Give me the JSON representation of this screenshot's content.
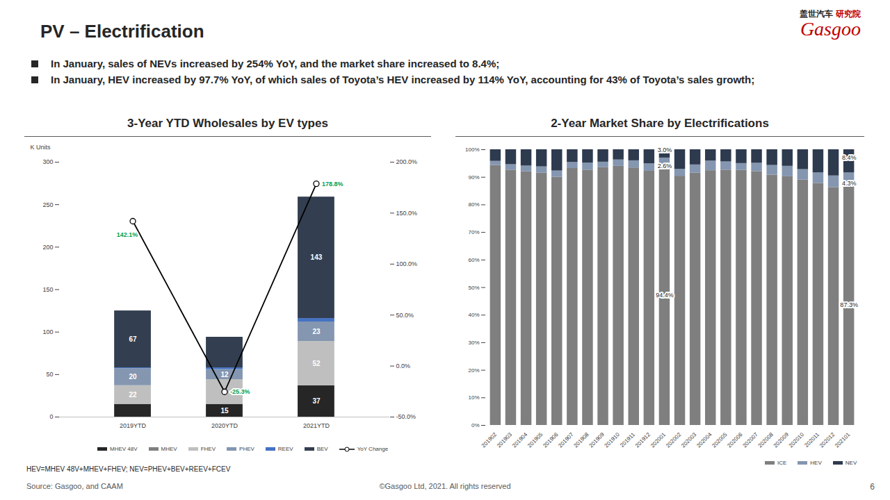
{
  "page": {
    "title": "PV – Electrification",
    "bullets": [
      "In January, sales of NEVs increased by 254% YoY, and the market share increased to 8.4%;",
      "In January, HEV increased by 97.7% YoY, of which sales of Toyota’s HEV increased by 114% YoY, accounting for 43% of Toyota’s sales growth;"
    ],
    "logo": {
      "cn": "盖世汽车",
      "cn_sub": "研究院",
      "en": "Gasgoo"
    },
    "note": "HEV=MHEV 48V+MHEV+FHEV; NEV=PHEV+BEV+REEV+FCEV",
    "source": "Source: Gasgoo, and CAAM",
    "copyright": "©Gasgoo Ltd, 2021. All rights reserved",
    "page_number": 6
  },
  "chart_data": [
    {
      "type": "bar",
      "title": "3-Year YTD Wholesales by EV types",
      "ylabel": "K Units",
      "categories": [
        "2019YTD",
        "2020YTD",
        "2021YTD"
      ],
      "stacked": true,
      "data_labels": true,
      "legend": "bottom",
      "ylim": [
        0,
        300
      ],
      "yticks": [
        0,
        50,
        100,
        150,
        200,
        250,
        300
      ],
      "y2lim": [
        -50,
        200
      ],
      "y2ticks": [
        {
          "value": -50,
          "label": "-50.0%"
        },
        {
          "value": 0,
          "label": "0.0%"
        },
        {
          "value": 50,
          "label": "50.0%"
        },
        {
          "value": 100,
          "label": "100.0%"
        },
        {
          "value": 150,
          "label": "150.0%"
        },
        {
          "value": 200,
          "label": "200.0%"
        }
      ],
      "series": [
        {
          "name": "MHEV 48V",
          "color": "#262626",
          "values": [
            15,
            15,
            37
          ],
          "value_labels": [
            null,
            "15",
            "37"
          ]
        },
        {
          "name": "MHEV",
          "color": "#7f7f7f",
          "values": [
            0,
            0,
            0
          ],
          "value_labels": [
            null,
            null,
            null
          ]
        },
        {
          "name": "FHEV",
          "color": "#bfbfbf",
          "values": [
            22,
            29,
            52
          ],
          "value_labels": [
            "22",
            null,
            "52"
          ]
        },
        {
          "name": "PHEV",
          "color": "#8496b0",
          "values": [
            20,
            12,
            23
          ],
          "value_labels": [
            "20",
            "12",
            "23"
          ]
        },
        {
          "name": "REEV",
          "color": "#4472c4",
          "values": [
            1,
            2,
            4
          ],
          "value_labels": [
            null,
            null,
            null
          ]
        },
        {
          "name": "BEV",
          "color": "#333f50",
          "values": [
            67,
            36,
            143
          ],
          "value_labels": [
            "67",
            null,
            "143"
          ]
        },
        {
          "name": "YoY Change",
          "type": "line",
          "axis": "y2",
          "color": "#000000",
          "marker": "circle",
          "values": [
            142.1,
            -25.3,
            178.8
          ],
          "value_labels": [
            "142.1%",
            "-25.3%",
            "178.8%"
          ]
        }
      ]
    },
    {
      "type": "bar",
      "title": "2-Year Market Share by Electrifications",
      "categories": [
        "201902",
        "201903",
        "201904",
        "201905",
        "201906",
        "201907",
        "201908",
        "201909",
        "201910",
        "201911",
        "201912",
        "202001",
        "202002",
        "202003",
        "202004",
        "202005",
        "202006",
        "202007",
        "202008",
        "202009",
        "202010",
        "202011",
        "202012",
        "202101"
      ],
      "stacked": true,
      "data_labels": true,
      "legend": "bottom",
      "ylim": [
        0,
        100
      ],
      "yticks": [
        {
          "value": 0,
          "label": "0%"
        },
        {
          "value": 10,
          "label": "10%"
        },
        {
          "value": 20,
          "label": "20%"
        },
        {
          "value": 30,
          "label": "30%"
        },
        {
          "value": 40,
          "label": "40%"
        },
        {
          "value": 50,
          "label": "50%"
        },
        {
          "value": 60,
          "label": "60%"
        },
        {
          "value": 70,
          "label": "70%"
        },
        {
          "value": 80,
          "label": "80%"
        },
        {
          "value": 90,
          "label": "90%"
        },
        {
          "value": 100,
          "label": "100%"
        }
      ],
      "series": [
        {
          "name": "ICE",
          "color": "#7f7f7f",
          "values": [
            94.3,
            92.6,
            92.0,
            91.5,
            90.0,
            93.2,
            92.6,
            93.5,
            94.0,
            93.4,
            92.2,
            94.4,
            90.4,
            91.5,
            92.4,
            92.6,
            92.5,
            92.1,
            90.8,
            90.2,
            89.0,
            87.8,
            86.3,
            87.3
          ],
          "value_labels": [
            null,
            null,
            null,
            null,
            null,
            null,
            null,
            null,
            null,
            null,
            null,
            "94.4%",
            null,
            null,
            null,
            null,
            null,
            null,
            null,
            null,
            null,
            null,
            null,
            "87.3%"
          ]
        },
        {
          "name": "HEV",
          "color": "#8496b0",
          "values": [
            1.5,
            2.0,
            2.1,
            2.3,
            2.3,
            2.2,
            2.6,
            2.0,
            2.3,
            2.6,
            2.7,
            2.6,
            2.5,
            3.0,
            3.5,
            3.0,
            2.5,
            3.0,
            3.5,
            3.8,
            3.8,
            3.8,
            4.2,
            4.3
          ],
          "value_labels": [
            null,
            null,
            null,
            null,
            null,
            null,
            null,
            null,
            null,
            null,
            null,
            "2.6%",
            null,
            null,
            null,
            null,
            null,
            null,
            null,
            null,
            null,
            null,
            null,
            "4.3%"
          ]
        },
        {
          "name": "NEV",
          "color": "#2e3a4e",
          "values": [
            4.2,
            5.4,
            5.9,
            6.2,
            7.7,
            4.6,
            4.8,
            4.5,
            3.7,
            4.0,
            5.1,
            3.0,
            7.1,
            5.5,
            4.1,
            4.4,
            5.0,
            4.9,
            5.7,
            6.0,
            7.2,
            8.4,
            9.5,
            8.4
          ],
          "value_labels": [
            null,
            null,
            null,
            null,
            null,
            null,
            null,
            null,
            null,
            null,
            null,
            "3.0%",
            null,
            null,
            null,
            null,
            null,
            null,
            null,
            null,
            null,
            null,
            null,
            "8.4%"
          ]
        }
      ]
    }
  ]
}
